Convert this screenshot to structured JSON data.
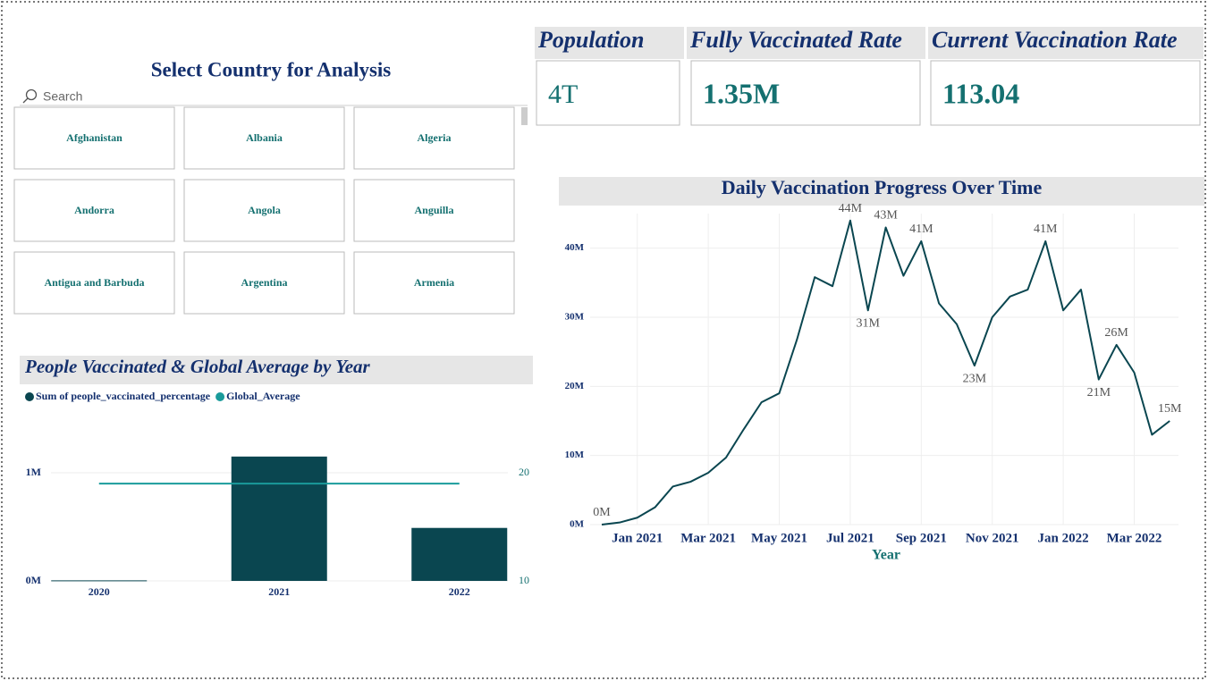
{
  "slicer": {
    "title": "Select Country for Analysis",
    "search": "Search",
    "items": [
      "Afghanistan",
      "Albania",
      "Algeria",
      "Andorra",
      "Angola",
      "Anguilla",
      "Antigua and Barbuda",
      "Argentina",
      "Armenia"
    ]
  },
  "cards": [
    {
      "label": "Population",
      "value": "4T"
    },
    {
      "label": "Fully Vaccinated Rate",
      "value": "1.35M"
    },
    {
      "label": "Current Vaccination Rate",
      "value": "113.04"
    }
  ],
  "chart_data": [
    {
      "type": "combo",
      "title": "People Vaccinated & Global Average by Year",
      "categories": [
        "2020",
        "2021",
        "2022"
      ],
      "series": [
        {
          "name": "Sum of people_vaccinated_percentage",
          "type": "bar",
          "color": "#0a4650",
          "values": [
            5000,
            1150000,
            490000
          ]
        },
        {
          "name": "Global_Average",
          "type": "line",
          "axis": "y2",
          "color": "#1a9b9b",
          "values": [
            19,
            19,
            19
          ]
        }
      ],
      "ylim": [
        0,
        1400000
      ],
      "yticks": [
        {
          "value": 0,
          "label": "0M"
        },
        {
          "value": 1000000,
          "label": "1M"
        }
      ],
      "y2lim": [
        10,
        24
      ],
      "y2ticks": [
        10,
        20
      ],
      "grid": true,
      "legend": "top-left"
    },
    {
      "type": "line",
      "title": "Daily Vaccination Progress Over Time",
      "xlabel": "Year",
      "color": "#0a4650",
      "categories": [
        null,
        null,
        "Jan 2021",
        null,
        null,
        null,
        "Mar 2021",
        null,
        null,
        null,
        "May 2021",
        null,
        null,
        null,
        "Jul 2021",
        null,
        null,
        null,
        "Sep 2021",
        null,
        null,
        null,
        "Nov 2021",
        null,
        null,
        null,
        "Jan 2022",
        null,
        null,
        null,
        "Mar 2022",
        null,
        null
      ],
      "values": [
        0,
        300000,
        1000000,
        2500000,
        5500000,
        6200000,
        7500000,
        9700000,
        13800000,
        17700000,
        19000000,
        26800000,
        35800000,
        34500000,
        44000000,
        31000000,
        43000000,
        36000000,
        41000000,
        32000000,
        29000000,
        23000000,
        30000000,
        33000000,
        34000000,
        41000000,
        31000000,
        34000000,
        21000000,
        26000000,
        22000000,
        13000000,
        15000000
      ],
      "value_labels": [
        "0M",
        null,
        null,
        null,
        null,
        null,
        null,
        null,
        null,
        null,
        null,
        null,
        null,
        null,
        "44M",
        "31M",
        "43M",
        null,
        "41M",
        null,
        null,
        "23M",
        null,
        null,
        null,
        "41M",
        null,
        null,
        "21M",
        "26M",
        null,
        null,
        "15M"
      ],
      "ylim": [
        0,
        45000000
      ],
      "yticks": [
        {
          "value": 0,
          "label": "0M"
        },
        {
          "value": 10000000,
          "label": "10M"
        },
        {
          "value": 20000000,
          "label": "20M"
        },
        {
          "value": 30000000,
          "label": "30M"
        },
        {
          "value": 40000000,
          "label": "40M"
        }
      ],
      "grid": true
    }
  ]
}
